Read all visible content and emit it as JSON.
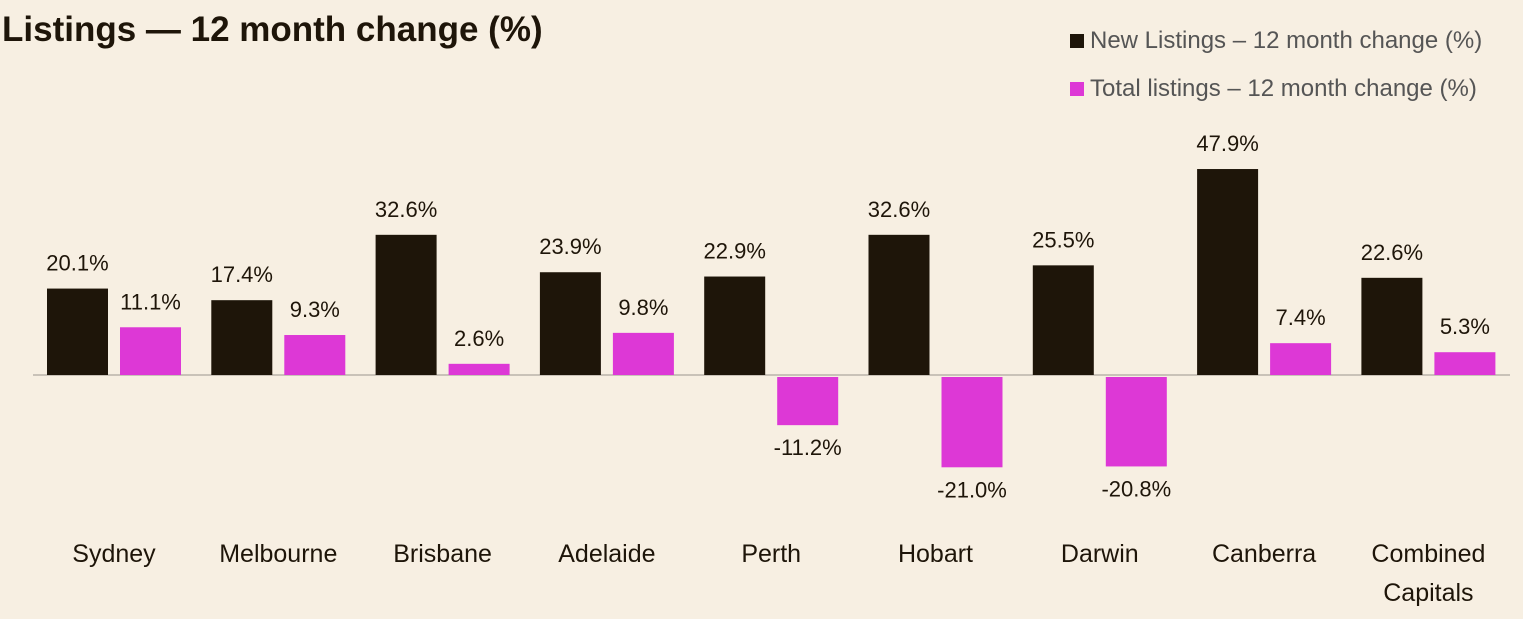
{
  "title": "Listings — 12 month change (%)",
  "legend": [
    {
      "label": "New Listings – 12 month change (%)",
      "color": "#1e1509"
    },
    {
      "label": "Total listings – 12 month change (%)",
      "color": "#dd38d6"
    }
  ],
  "chart_data": {
    "type": "bar",
    "title": "Listings — 12 month change (%)",
    "categories": [
      "Sydney",
      "Melbourne",
      "Brisbane",
      "Adelaide",
      "Perth",
      "Hobart",
      "Darwin",
      "Canberra",
      "Combined Capitals"
    ],
    "series": [
      {
        "name": "New Listings – 12 month change (%)",
        "color": "#1e1509",
        "values": [
          20.1,
          17.4,
          32.6,
          23.9,
          22.9,
          32.6,
          25.5,
          47.9,
          22.6
        ],
        "labels": [
          "20.1%",
          "17.4%",
          "32.6%",
          "23.9%",
          "22.9%",
          "32.6%",
          "25.5%",
          "47.9%",
          "22.6%"
        ]
      },
      {
        "name": "Total listings – 12 month change (%)",
        "color": "#dd38d6",
        "values": [
          11.1,
          9.3,
          2.6,
          9.8,
          -11.2,
          -21.0,
          -20.8,
          7.4,
          5.3
        ],
        "labels": [
          "11.1%",
          "9.3%",
          "2.6%",
          "9.8%",
          "-11.2%",
          "-21.0%",
          "-20.8%",
          "7.4%",
          "5.3%"
        ]
      }
    ],
    "xlabel": "",
    "ylabel": "",
    "grid": false,
    "legend_position": "top-right"
  }
}
